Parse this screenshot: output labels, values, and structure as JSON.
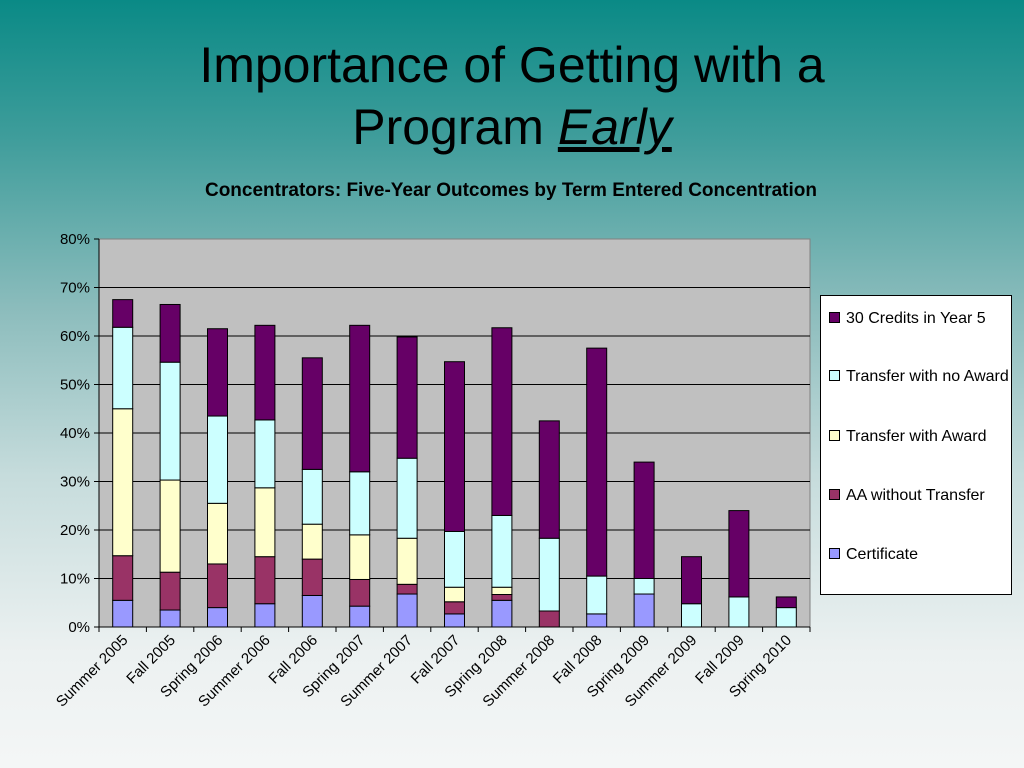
{
  "slide": {
    "title_line1": "Importance of Getting with a",
    "title_line2": "Program ",
    "title_emph": "Early"
  },
  "chart_data": {
    "type": "bar",
    "stacked": true,
    "title": "Concentrators: Five-Year Outcomes by Term Entered Concentration",
    "xlabel": "",
    "ylabel": "",
    "ylim": [
      0,
      0.8
    ],
    "yticks": [
      "0%",
      "10%",
      "20%",
      "30%",
      "40%",
      "50%",
      "60%",
      "70%",
      "80%"
    ],
    "grid": true,
    "legend_position": "right",
    "categories": [
      "Summer 2005",
      "Fall 2005",
      "Spring 2006",
      "Summer 2006",
      "Fall 2006",
      "Spring 2007",
      "Summer 2007",
      "Fall 2007",
      "Spring 2008",
      "Summer 2008",
      "Fall 2008",
      "Spring 2009",
      "Summer 2009",
      "Fall 2009",
      "Spring 2010"
    ],
    "series": [
      {
        "name": "Certificate",
        "color": "#9999ff",
        "values": [
          0.055,
          0.035,
          0.04,
          0.048,
          0.065,
          0.043,
          0.068,
          0.027,
          0.055,
          0.0,
          0.027,
          0.068,
          0.0,
          0.0,
          0.0
        ]
      },
      {
        "name": "AA without Transfer",
        "color": "#993366",
        "values": [
          0.092,
          0.078,
          0.09,
          0.097,
          0.075,
          0.055,
          0.02,
          0.025,
          0.012,
          0.033,
          0.0,
          0.0,
          0.0,
          0.0,
          0.0
        ]
      },
      {
        "name": "Transfer with Award",
        "color": "#ffffcc",
        "values": [
          0.303,
          0.19,
          0.125,
          0.142,
          0.072,
          0.092,
          0.095,
          0.03,
          0.015,
          0.0,
          0.0,
          0.0,
          0.0,
          0.0,
          0.0
        ]
      },
      {
        "name": "Transfer with no Award",
        "color": "#ccffff",
        "values": [
          0.168,
          0.243,
          0.18,
          0.14,
          0.113,
          0.13,
          0.165,
          0.115,
          0.148,
          0.15,
          0.078,
          0.032,
          0.048,
          0.062,
          0.04
        ]
      },
      {
        "name": "30 Credits in Year 5",
        "color": "#660066",
        "values": [
          0.057,
          0.119,
          0.18,
          0.195,
          0.23,
          0.302,
          0.25,
          0.35,
          0.387,
          0.242,
          0.47,
          0.24,
          0.097,
          0.178,
          0.022
        ]
      }
    ]
  }
}
